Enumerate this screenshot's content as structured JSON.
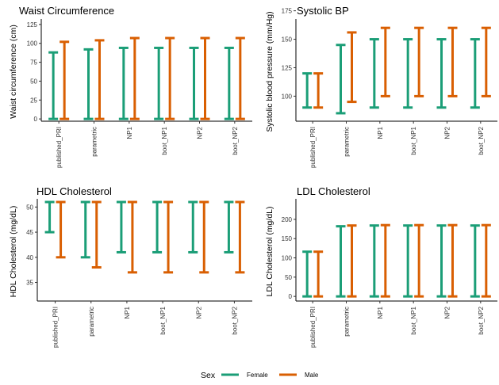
{
  "colors": {
    "Female": "#1b9e77",
    "Male": "#d95f02"
  },
  "legend": {
    "title": "Sex",
    "items": [
      "Female",
      "Male"
    ]
  },
  "chart_data": [
    {
      "type": "errorbar",
      "title": "Waist Circumference",
      "ylabel": "Waist circumference (cm)",
      "xlabel": "",
      "ylim": [
        -3,
        128
      ],
      "yticks": [
        0,
        25,
        50,
        75,
        100,
        125
      ],
      "categories": [
        "published_PRI",
        "parametric",
        "NP1",
        "boot_NP1",
        "NP2",
        "boot_NP2"
      ],
      "series": [
        {
          "name": "Female",
          "low": [
            0,
            0,
            0,
            0,
            0,
            0
          ],
          "high": [
            88,
            92,
            94,
            94,
            94,
            94
          ]
        },
        {
          "name": "Male",
          "low": [
            0,
            0,
            0,
            0,
            0,
            0
          ],
          "high": [
            102,
            104,
            107,
            107,
            107,
            107
          ]
        }
      ]
    },
    {
      "type": "errorbar",
      "title": "Systolic BP",
      "ylabel": "Systolic blood pressure (mm/Hg)",
      "xlabel": "",
      "ylim": [
        78,
        165
      ],
      "yticks": [
        100,
        125,
        150,
        175
      ],
      "categories": [
        "published_PRI",
        "parametric",
        "NP1",
        "boot_NP1",
        "NP2",
        "boot_NP2"
      ],
      "series": [
        {
          "name": "Female",
          "low": [
            90,
            85,
            90,
            90,
            90,
            90
          ],
          "high": [
            120,
            145,
            150,
            150,
            150,
            150
          ]
        },
        {
          "name": "Male",
          "low": [
            90,
            95,
            100,
            100,
            100,
            100
          ],
          "high": [
            120,
            156,
            160,
            160,
            160,
            160
          ]
        }
      ]
    },
    {
      "type": "errorbar",
      "title": "HDL Cholesterol",
      "ylabel": "HDL Cholesterol (mg/dL)",
      "xlabel": "",
      "ylim": [
        31.3,
        51
      ],
      "yticks": [
        35,
        40,
        45,
        50
      ],
      "categories": [
        "published_PRI",
        "parametric",
        "NP1",
        "boot_NP1",
        "NP2",
        "boot_NP2"
      ],
      "series": [
        {
          "name": "Female",
          "low": [
            45,
            40,
            41,
            41,
            41,
            41
          ],
          "high": [
            51,
            51,
            51,
            51,
            51,
            51
          ]
        },
        {
          "name": "Male",
          "low": [
            40,
            38,
            37,
            37,
            37,
            37
          ],
          "high": [
            51,
            51,
            51,
            51,
            51,
            51
          ]
        }
      ]
    },
    {
      "type": "errorbar",
      "title": "LDL Cholesterol",
      "ylabel": "LDL Cholesterol (mg/dL)",
      "xlabel": "",
      "ylim": [
        -12,
        245
      ],
      "yticks": [
        0,
        50,
        100,
        150,
        200
      ],
      "categories": [
        "published_PRI",
        "parametric",
        "NP1",
        "boot_NP1",
        "NP2",
        "boot_NP2"
      ],
      "series": [
        {
          "name": "Female",
          "low": [
            0,
            0,
            0,
            0,
            0,
            0
          ],
          "high": [
            116,
            182,
            184,
            184,
            184,
            184
          ]
        },
        {
          "name": "Male",
          "low": [
            0,
            0,
            0,
            0,
            0,
            0
          ],
          "high": [
            116,
            184,
            185,
            185,
            185,
            185
          ]
        }
      ]
    }
  ]
}
